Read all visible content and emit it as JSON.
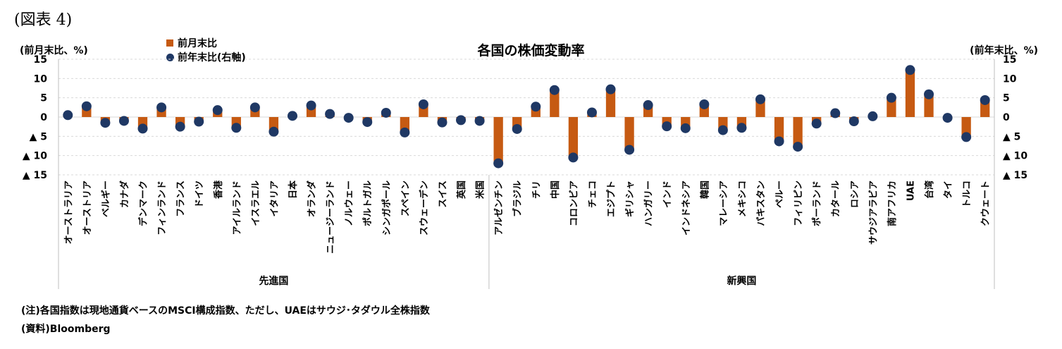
{
  "figure_label": "(図表 4)",
  "notes": {
    "note": "(注)各国指数は現地通貨ベースのMSCI構成指数、ただし、UAEはサウジ･タダウル全株指数",
    "source": "(資料)Bloomberg"
  },
  "colors": {
    "bar": "#c65a12",
    "dot": "#1f3864",
    "grid": "#d9d9d9"
  },
  "chart_data": {
    "type": "bar",
    "title": "各国の株価変動率",
    "ylabel_left": "(前月末比、%)",
    "ylabel_right": "(前年末比、%)",
    "ylim": [
      -15,
      15
    ],
    "yticks": [
      15,
      10,
      5,
      0,
      -5,
      -10,
      -15
    ],
    "yticklabels_left": [
      "15",
      "10",
      "5",
      "0",
      "▲ 5",
      "▲ 10",
      "▲ 15"
    ],
    "yticklabels_right": [
      "15",
      "10",
      "5",
      "0",
      "▲ 5",
      "▲ 10",
      "▲ 15"
    ],
    "grid": true,
    "legend_position": "top-left",
    "categories": [
      "オーストラリア",
      "オーストリア",
      "ベルギー",
      "カナダ",
      "デンマーク",
      "フィンランド",
      "フランス",
      "ドイツ",
      "香港",
      "アイルランド",
      "イスラエル",
      "イタリア",
      "日本",
      "オランダ",
      "ニュージーランド",
      "ノルウェー",
      "ポルトガル",
      "シンガポール",
      "スペイン",
      "スウェーデン",
      "スイス",
      "英国",
      "米国",
      "アルゼンチン",
      "ブラジル",
      "チリ",
      "中国",
      "コロンビア",
      "チェコ",
      "エジプト",
      "ギリシャ",
      "ハンガリー",
      "インド",
      "インドネシア",
      "韓国",
      "マレーシア",
      "メキシコ",
      "パキスタン",
      "ペルー",
      "フィリピン",
      "ポーランド",
      "カタール",
      "ロシア",
      "サウジアラビア",
      "南アフリカ",
      "UAE",
      "台湾",
      "タイ",
      "トルコ",
      "クウェート"
    ],
    "groups": [
      {
        "label": "先進国",
        "start": 0,
        "end": 22
      },
      {
        "label": "新興国",
        "start": 23,
        "end": 49
      }
    ],
    "series": [
      {
        "name": "前月末比",
        "kind": "bar",
        "values": [
          0.5,
          2.8,
          -1.5,
          -1.0,
          -3.0,
          2.5,
          -2.5,
          -1.2,
          1.8,
          -2.8,
          2.5,
          -3.8,
          0.3,
          3.0,
          0.8,
          -0.2,
          -1.3,
          1.1,
          -4.0,
          3.3,
          -1.4,
          -0.8,
          -1.0,
          -12.0,
          -3.1,
          2.7,
          7.0,
          -10.5,
          1.2,
          7.2,
          -8.5,
          3.1,
          -2.4,
          -2.9,
          3.3,
          -3.4,
          -2.8,
          4.6,
          -6.3,
          -7.7,
          -1.7,
          1.0,
          -1.1,
          0.2,
          5.0,
          12.2,
          5.9,
          -0.2,
          -5.2,
          4.4
        ]
      },
      {
        "name": "前年末比(右軸)",
        "kind": "dot",
        "values": [
          0.5,
          2.8,
          -1.5,
          -1.0,
          -3.0,
          2.5,
          -2.5,
          -1.2,
          1.8,
          -2.8,
          2.5,
          -3.8,
          0.3,
          3.0,
          0.8,
          -0.2,
          -1.3,
          1.1,
          -4.0,
          3.3,
          -1.4,
          -0.8,
          -1.0,
          -12.0,
          -3.1,
          2.7,
          7.0,
          -10.5,
          1.2,
          7.2,
          -8.5,
          3.1,
          -2.4,
          -2.9,
          3.3,
          -3.4,
          -2.8,
          4.6,
          -6.3,
          -7.7,
          -1.7,
          1.0,
          -1.1,
          0.2,
          5.0,
          12.2,
          5.9,
          -0.2,
          -5.2,
          4.4
        ]
      }
    ]
  }
}
